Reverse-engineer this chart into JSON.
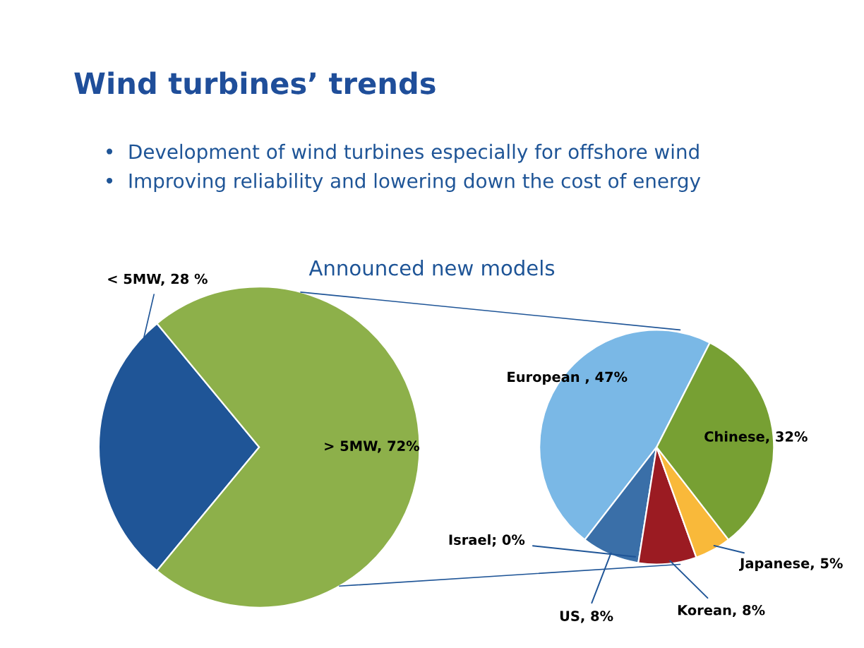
{
  "chart_data": [
    {
      "type": "pie",
      "title": "Wind turbines’ trends",
      "subtitle": "Announced new models",
      "annotations": [
        "•  Development of wind turbines especially for offshore wind",
        "•  Improving reliability and lowering down the cost of energy"
      ],
      "categories": [
        "< 5MW, 28 %",
        "> 5MW, 72%"
      ],
      "values": [
        28,
        72
      ],
      "colors": [
        "#1f5597",
        "#8db04a"
      ]
    },
    {
      "type": "pie",
      "categories": [
        "European , 47%",
        "US, 8%",
        "Israel; 0%",
        "Korean, 8%",
        "Japanese, 5%",
        "Chinese, 32%"
      ],
      "values": [
        47,
        8,
        0,
        8,
        5,
        32
      ],
      "colors": [
        "#7ab8e6",
        "#3a6fa8",
        "#2f5f9a",
        "#9b1b22",
        "#f9b93a",
        "#77a033"
      ]
    }
  ]
}
